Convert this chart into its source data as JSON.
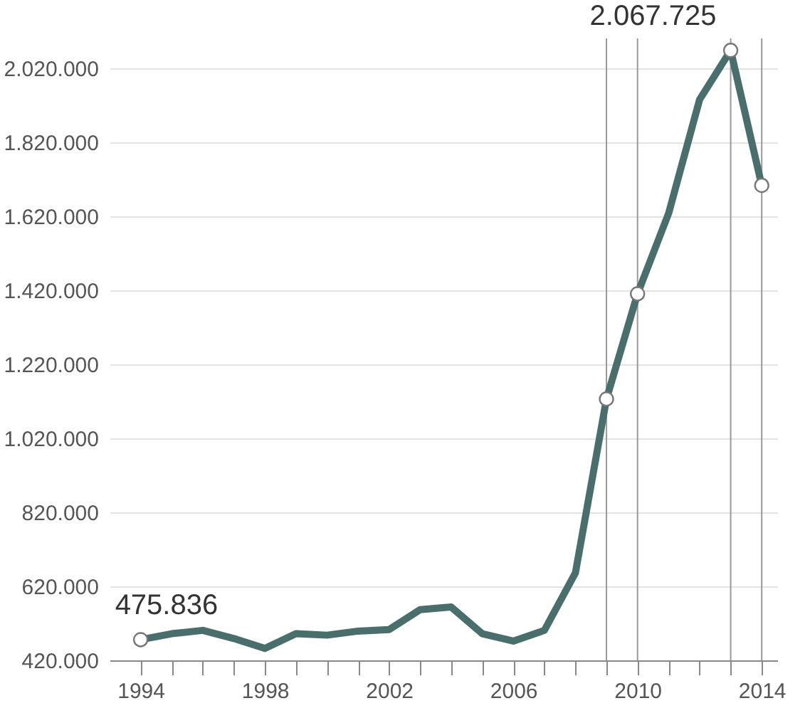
{
  "chart_data": {
    "type": "line",
    "x": [
      1994,
      1995,
      1996,
      1997,
      1998,
      1999,
      2000,
      2001,
      2002,
      2003,
      2004,
      2005,
      2006,
      2007,
      2008,
      2009,
      2010,
      2011,
      2012,
      2013,
      2014
    ],
    "series": [
      {
        "color": "#4a6e6c",
        "values": [
          475836,
          492000,
          501000,
          479000,
          452000,
          492000,
          488000,
          499000,
          503000,
          557000,
          564000,
          492000,
          472000,
          501000,
          656000,
          1126000,
          1410000,
          1627000,
          1935000,
          2067725,
          1703000
        ]
      },
      {
        "type": "scatter",
        "color": "#ffffff",
        "x": [
          1994,
          2009,
          2010,
          2013,
          2014
        ],
        "values": [
          475836,
          1126000,
          1410000,
          2067725,
          1703000
        ]
      }
    ],
    "xlim": [
      1993,
      2014.5
    ],
    "ylim": [
      420000,
      2100000
    ],
    "xticks": [
      1994,
      {
        "value": 1995,
        "label": null
      },
      {
        "value": 1996,
        "label": null
      },
      {
        "value": 1997,
        "label": null
      },
      1998,
      {
        "value": 1999,
        "label": null
      },
      {
        "value": 2000,
        "label": null
      },
      {
        "value": 2001,
        "label": null
      },
      2002,
      {
        "value": 2003,
        "label": null
      },
      {
        "value": 2004,
        "label": null
      },
      {
        "value": 2005,
        "label": null
      },
      2006,
      {
        "value": 2007,
        "label": null
      },
      {
        "value": 2008,
        "label": null
      },
      {
        "value": 2009,
        "label": null
      },
      2010,
      {
        "value": 2011,
        "label": null
      },
      {
        "value": 2012,
        "label": null
      },
      {
        "value": 2013,
        "label": null
      },
      2014
    ],
    "yticks": [
      {
        "value": 420000,
        "label": "420.000"
      },
      {
        "value": 620000,
        "label": "620.000"
      },
      {
        "value": 820000,
        "label": "820.000"
      },
      {
        "value": 1020000,
        "label": "1.020.000"
      },
      {
        "value": 1220000,
        "label": "1.220.000"
      },
      {
        "value": 1420000,
        "label": "1.420.000"
      },
      {
        "value": 1620000,
        "label": "1.620.000"
      },
      {
        "value": 1820000,
        "label": "1.820.000"
      },
      {
        "value": 2020000,
        "label": "2.020.000"
      }
    ],
    "grid": "y",
    "ref_lines": [
      {
        "axis": "x",
        "value": 2009,
        "color": "#999999"
      },
      {
        "axis": "x",
        "value": 2010,
        "color": "#999999"
      },
      {
        "axis": "x",
        "value": 2013,
        "color": "#999999"
      },
      {
        "axis": "x",
        "value": 2014,
        "color": "#999999"
      }
    ],
    "annotations": [
      {
        "text": "475.836",
        "x": 1994,
        "y": 475836
      },
      {
        "text": "2.067.725",
        "x": 2013,
        "y": 2067725
      }
    ]
  }
}
